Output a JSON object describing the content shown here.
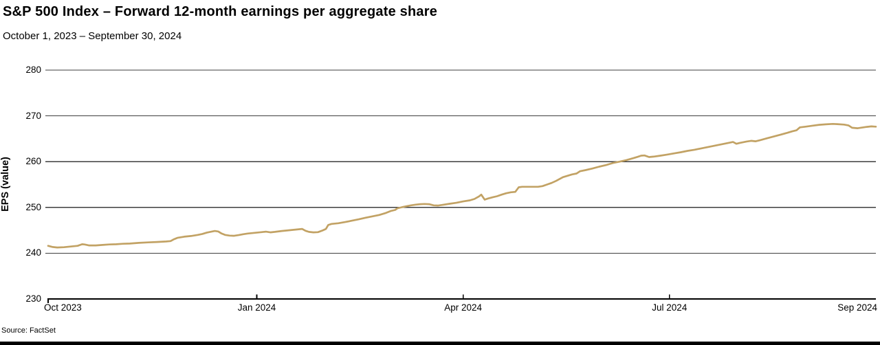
{
  "header": {
    "title": "S&P 500 Index – Forward 12-month earnings per aggregate share",
    "subtitle": "October 1, 2023 – September 30, 2024"
  },
  "footer": {
    "source": "Source: FactSet"
  },
  "chart_data": {
    "type": "line",
    "title": "S&P 500 Index – Forward 12-month earnings per aggregate share",
    "subtitle": "October 1, 2023 – September 30, 2024",
    "xlabel": "",
    "ylabel": "EPS (value)",
    "ylim": [
      230,
      280
    ],
    "y_ticks": [
      230,
      240,
      250,
      260,
      270,
      280
    ],
    "x_range_dates": [
      "2023-10-01",
      "2024-09-30"
    ],
    "xlim_days": [
      0,
      365
    ],
    "x_ticks": [
      {
        "label": "Oct 2023",
        "day": 0,
        "align": "left",
        "tick": "down"
      },
      {
        "label": "Jan 2024",
        "day": 92,
        "align": "center",
        "tick": "up"
      },
      {
        "label": "Apr 2024",
        "day": 183,
        "align": "center",
        "tick": "up"
      },
      {
        "label": "Jul 2024",
        "day": 274,
        "align": "center",
        "tick": "up"
      },
      {
        "label": "Sep 2024",
        "day": 365,
        "align": "right",
        "tick": "none"
      }
    ],
    "grid": "horizontal",
    "legend": "none",
    "line_color": "#C2A264",
    "grid_color": "#3d3d3d",
    "axis_color": "#000000",
    "series": [
      {
        "name": "Forward 12-month EPS",
        "points": [
          [
            0,
            241.6
          ],
          [
            2,
            241.35
          ],
          [
            4,
            241.25
          ],
          [
            7,
            241.3
          ],
          [
            10,
            241.45
          ],
          [
            13,
            241.6
          ],
          [
            15,
            241.95
          ],
          [
            16,
            241.9
          ],
          [
            18,
            241.7
          ],
          [
            21,
            241.7
          ],
          [
            24,
            241.8
          ],
          [
            27,
            241.9
          ],
          [
            30,
            241.95
          ],
          [
            33,
            242.05
          ],
          [
            36,
            242.1
          ],
          [
            40,
            242.25
          ],
          [
            44,
            242.35
          ],
          [
            48,
            242.45
          ],
          [
            52,
            242.55
          ],
          [
            54,
            242.65
          ],
          [
            55.5,
            243.05
          ],
          [
            57,
            243.35
          ],
          [
            60,
            243.6
          ],
          [
            63,
            243.75
          ],
          [
            66,
            244.0
          ],
          [
            68,
            244.2
          ],
          [
            70,
            244.5
          ],
          [
            72,
            244.7
          ],
          [
            73.5,
            244.85
          ],
          [
            75,
            244.75
          ],
          [
            76.5,
            244.3
          ],
          [
            78,
            244.0
          ],
          [
            80,
            243.85
          ],
          [
            82,
            243.8
          ],
          [
            84,
            243.95
          ],
          [
            86,
            244.15
          ],
          [
            88,
            244.3
          ],
          [
            91,
            244.45
          ],
          [
            94,
            244.6
          ],
          [
            96,
            244.7
          ],
          [
            98,
            244.55
          ],
          [
            100,
            244.65
          ],
          [
            103,
            244.85
          ],
          [
            106,
            245.0
          ],
          [
            109,
            245.15
          ],
          [
            112,
            245.3
          ],
          [
            113.5,
            244.9
          ],
          [
            115,
            244.65
          ],
          [
            117,
            244.55
          ],
          [
            119,
            244.6
          ],
          [
            121,
            244.95
          ],
          [
            122.5,
            245.3
          ],
          [
            123.5,
            246.15
          ],
          [
            125,
            246.4
          ],
          [
            128,
            246.55
          ],
          [
            131,
            246.8
          ],
          [
            134,
            247.1
          ],
          [
            137,
            247.4
          ],
          [
            140,
            247.75
          ],
          [
            143,
            248.05
          ],
          [
            146,
            248.35
          ],
          [
            149,
            248.8
          ],
          [
            151,
            249.2
          ],
          [
            153,
            249.45
          ],
          [
            154,
            249.8
          ],
          [
            156,
            250.05
          ],
          [
            158,
            250.25
          ],
          [
            160,
            250.45
          ],
          [
            162,
            250.6
          ],
          [
            164,
            250.7
          ],
          [
            166,
            250.75
          ],
          [
            168,
            250.7
          ],
          [
            170,
            250.45
          ],
          [
            172,
            250.4
          ],
          [
            174,
            250.55
          ],
          [
            177,
            250.8
          ],
          [
            180,
            251.0
          ],
          [
            183,
            251.3
          ],
          [
            186,
            251.55
          ],
          [
            188,
            251.85
          ],
          [
            190,
            252.4
          ],
          [
            191,
            252.8
          ],
          [
            192.5,
            251.7
          ],
          [
            194,
            251.95
          ],
          [
            196,
            252.2
          ],
          [
            198,
            252.45
          ],
          [
            200,
            252.8
          ],
          [
            202,
            253.1
          ],
          [
            204,
            253.3
          ],
          [
            206,
            253.4
          ],
          [
            207.5,
            254.4
          ],
          [
            209,
            254.5
          ],
          [
            212,
            254.5
          ],
          [
            216,
            254.5
          ],
          [
            218,
            254.65
          ],
          [
            220,
            255.0
          ],
          [
            222,
            255.35
          ],
          [
            224,
            255.8
          ],
          [
            227,
            256.6
          ],
          [
            229,
            256.9
          ],
          [
            231,
            257.2
          ],
          [
            233,
            257.4
          ],
          [
            234.5,
            257.9
          ],
          [
            237,
            258.15
          ],
          [
            240,
            258.5
          ],
          [
            243,
            258.9
          ],
          [
            246,
            259.25
          ],
          [
            249,
            259.7
          ],
          [
            252,
            260.0
          ],
          [
            255,
            260.35
          ],
          [
            258,
            260.75
          ],
          [
            260,
            261.05
          ],
          [
            261.5,
            261.3
          ],
          [
            263,
            261.35
          ],
          [
            265,
            261.0
          ],
          [
            267,
            261.1
          ],
          [
            270,
            261.3
          ],
          [
            273,
            261.55
          ],
          [
            276,
            261.8
          ],
          [
            279,
            262.05
          ],
          [
            282,
            262.35
          ],
          [
            285,
            262.6
          ],
          [
            288,
            262.9
          ],
          [
            291,
            263.2
          ],
          [
            294,
            263.5
          ],
          [
            297,
            263.8
          ],
          [
            300,
            264.1
          ],
          [
            302,
            264.3
          ],
          [
            303.5,
            263.9
          ],
          [
            305,
            264.1
          ],
          [
            308,
            264.4
          ],
          [
            310,
            264.55
          ],
          [
            312,
            264.45
          ],
          [
            314,
            264.7
          ],
          [
            317,
            265.1
          ],
          [
            320,
            265.5
          ],
          [
            323,
            265.9
          ],
          [
            326,
            266.3
          ],
          [
            328,
            266.6
          ],
          [
            330,
            266.85
          ],
          [
            331.5,
            267.5
          ],
          [
            334,
            267.65
          ],
          [
            337,
            267.85
          ],
          [
            340,
            268.05
          ],
          [
            343,
            268.15
          ],
          [
            346,
            268.25
          ],
          [
            348,
            268.2
          ],
          [
            351,
            268.1
          ],
          [
            353,
            267.9
          ],
          [
            354.5,
            267.4
          ],
          [
            357,
            267.3
          ],
          [
            359,
            267.45
          ],
          [
            361,
            267.6
          ],
          [
            363,
            267.7
          ],
          [
            365,
            267.65
          ]
        ]
      }
    ]
  }
}
